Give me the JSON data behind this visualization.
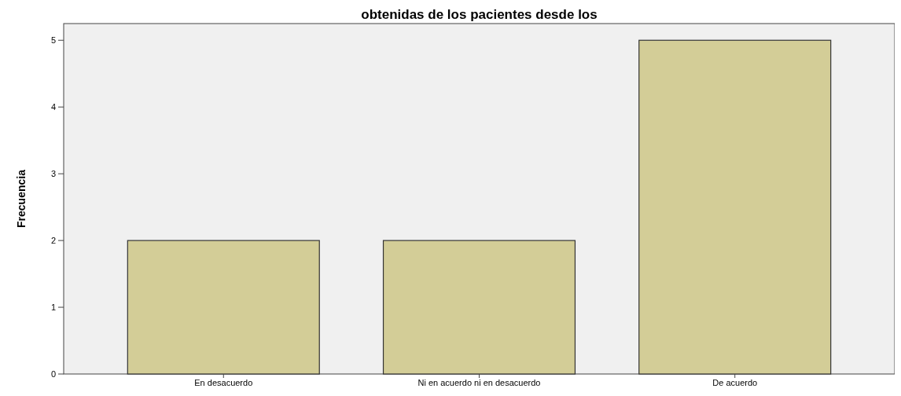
{
  "chart_data": {
    "type": "bar",
    "title": "obtenidas de los pacientes desde los",
    "ylabel": "Frecuencia",
    "categories": [
      "En desacuerdo",
      "Ni en acuerdo  ni en desacuerdo",
      "De acuerdo"
    ],
    "values": [
      2,
      2,
      5
    ],
    "color": "#d3cd97",
    "ylim": [
      0,
      5.25
    ],
    "yticks": [
      0,
      1,
      2,
      3,
      4,
      5
    ],
    "grid": false
  }
}
